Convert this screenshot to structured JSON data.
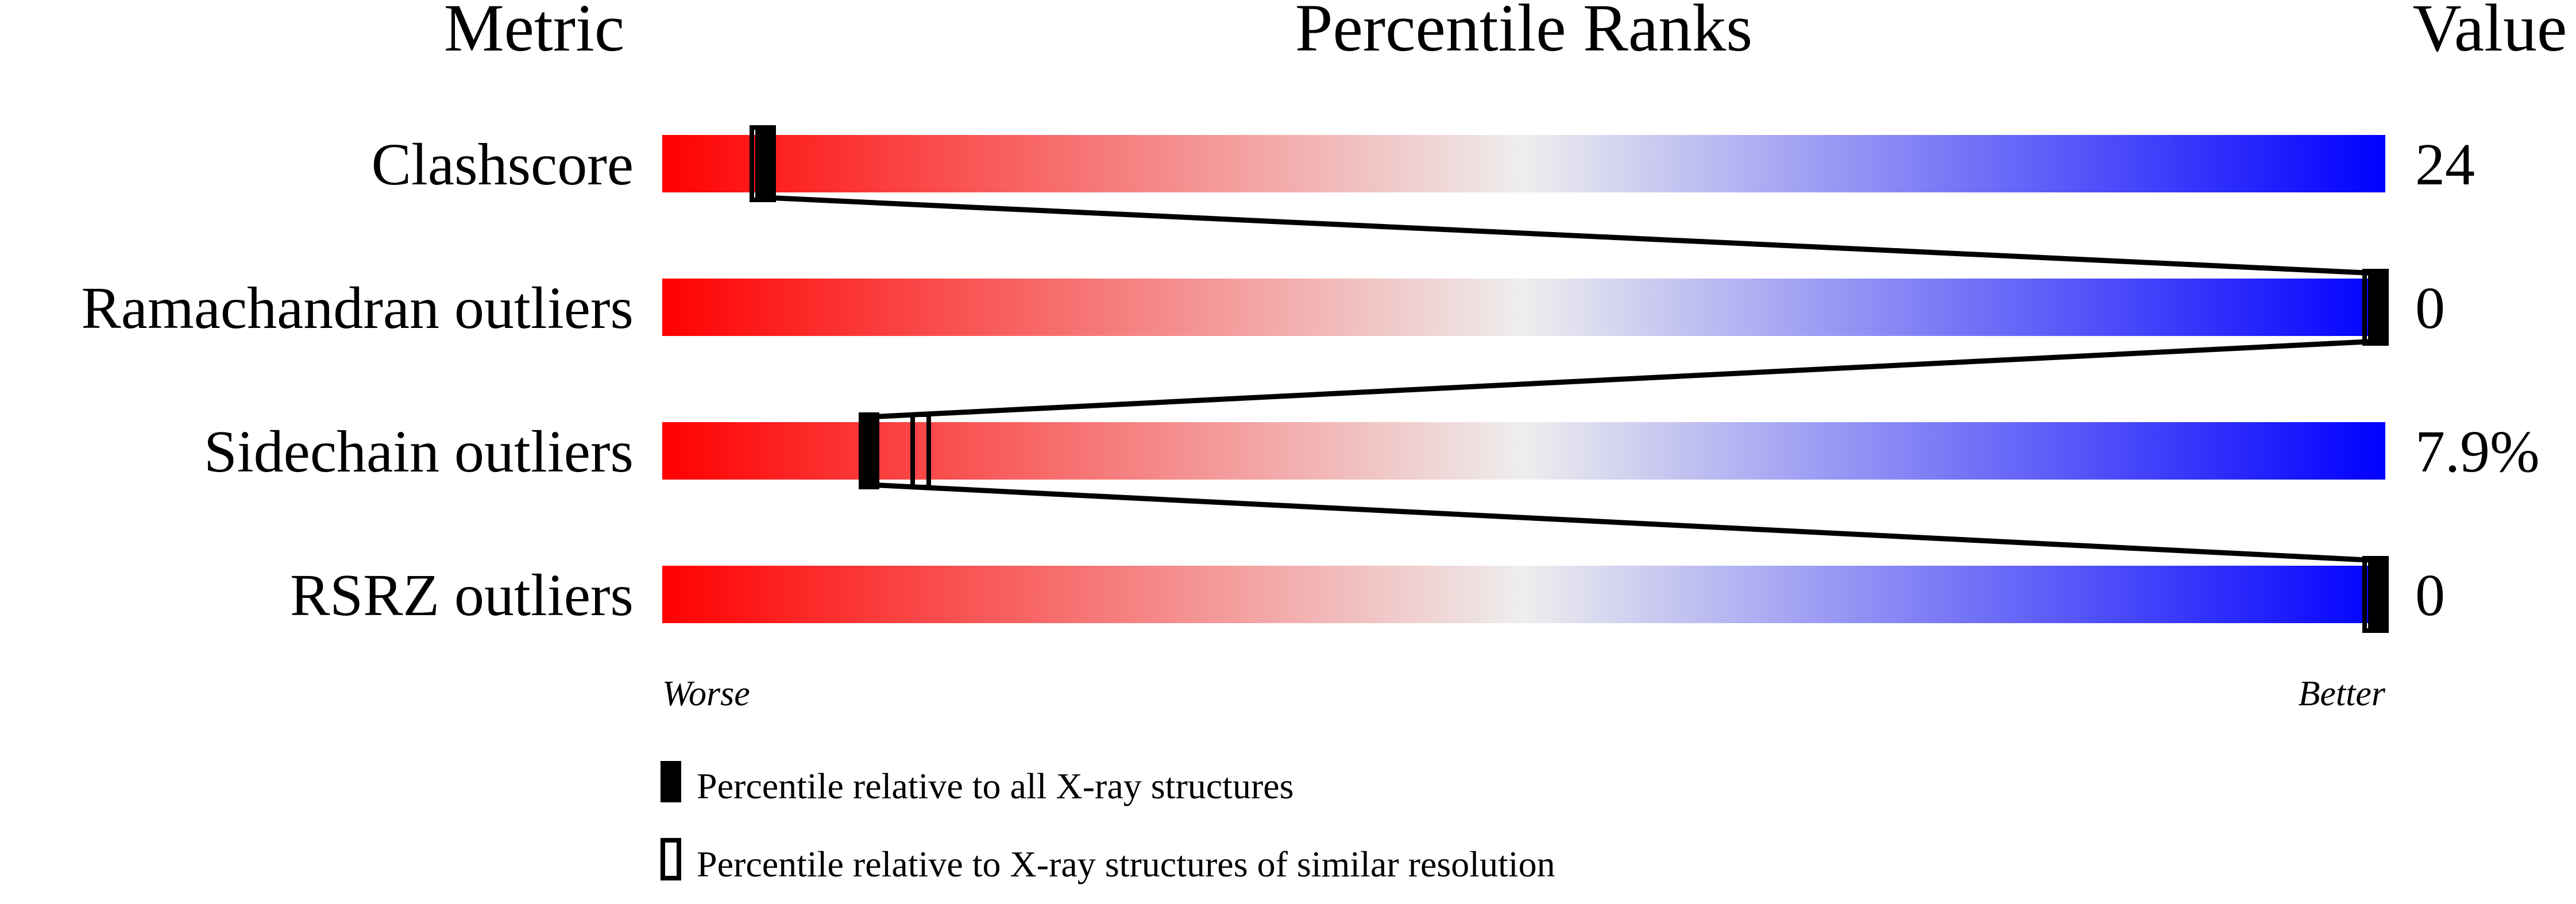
{
  "chart_data": {
    "type": "percentile-bar",
    "headers": {
      "metric": "Metric",
      "ranks": "Percentile Ranks",
      "value": "Value"
    },
    "axis": {
      "left_label": "Worse",
      "right_label": "Better",
      "range": [
        0,
        100
      ]
    },
    "gradient_colors": {
      "worse": "#ff0000",
      "middle": "#eeeeee",
      "better": "#0000ff"
    },
    "metrics": [
      {
        "name": "Clashscore",
        "value": "24",
        "percentile_all": 6,
        "percentile_similar": 6
      },
      {
        "name": "Ramachandran outliers",
        "value": "0",
        "percentile_all": 100,
        "percentile_similar": 100
      },
      {
        "name": "Sidechain outliers",
        "value": "7.9%",
        "percentile_all": 12,
        "percentile_similar": 15
      },
      {
        "name": "RSRZ outliers",
        "value": "0",
        "percentile_all": 100,
        "percentile_similar": 100
      }
    ],
    "legend": [
      {
        "marker": "filled",
        "label": "Percentile relative to all X-ray structures"
      },
      {
        "marker": "outline",
        "label": "Percentile relative to X-ray structures of similar resolution"
      }
    ]
  }
}
